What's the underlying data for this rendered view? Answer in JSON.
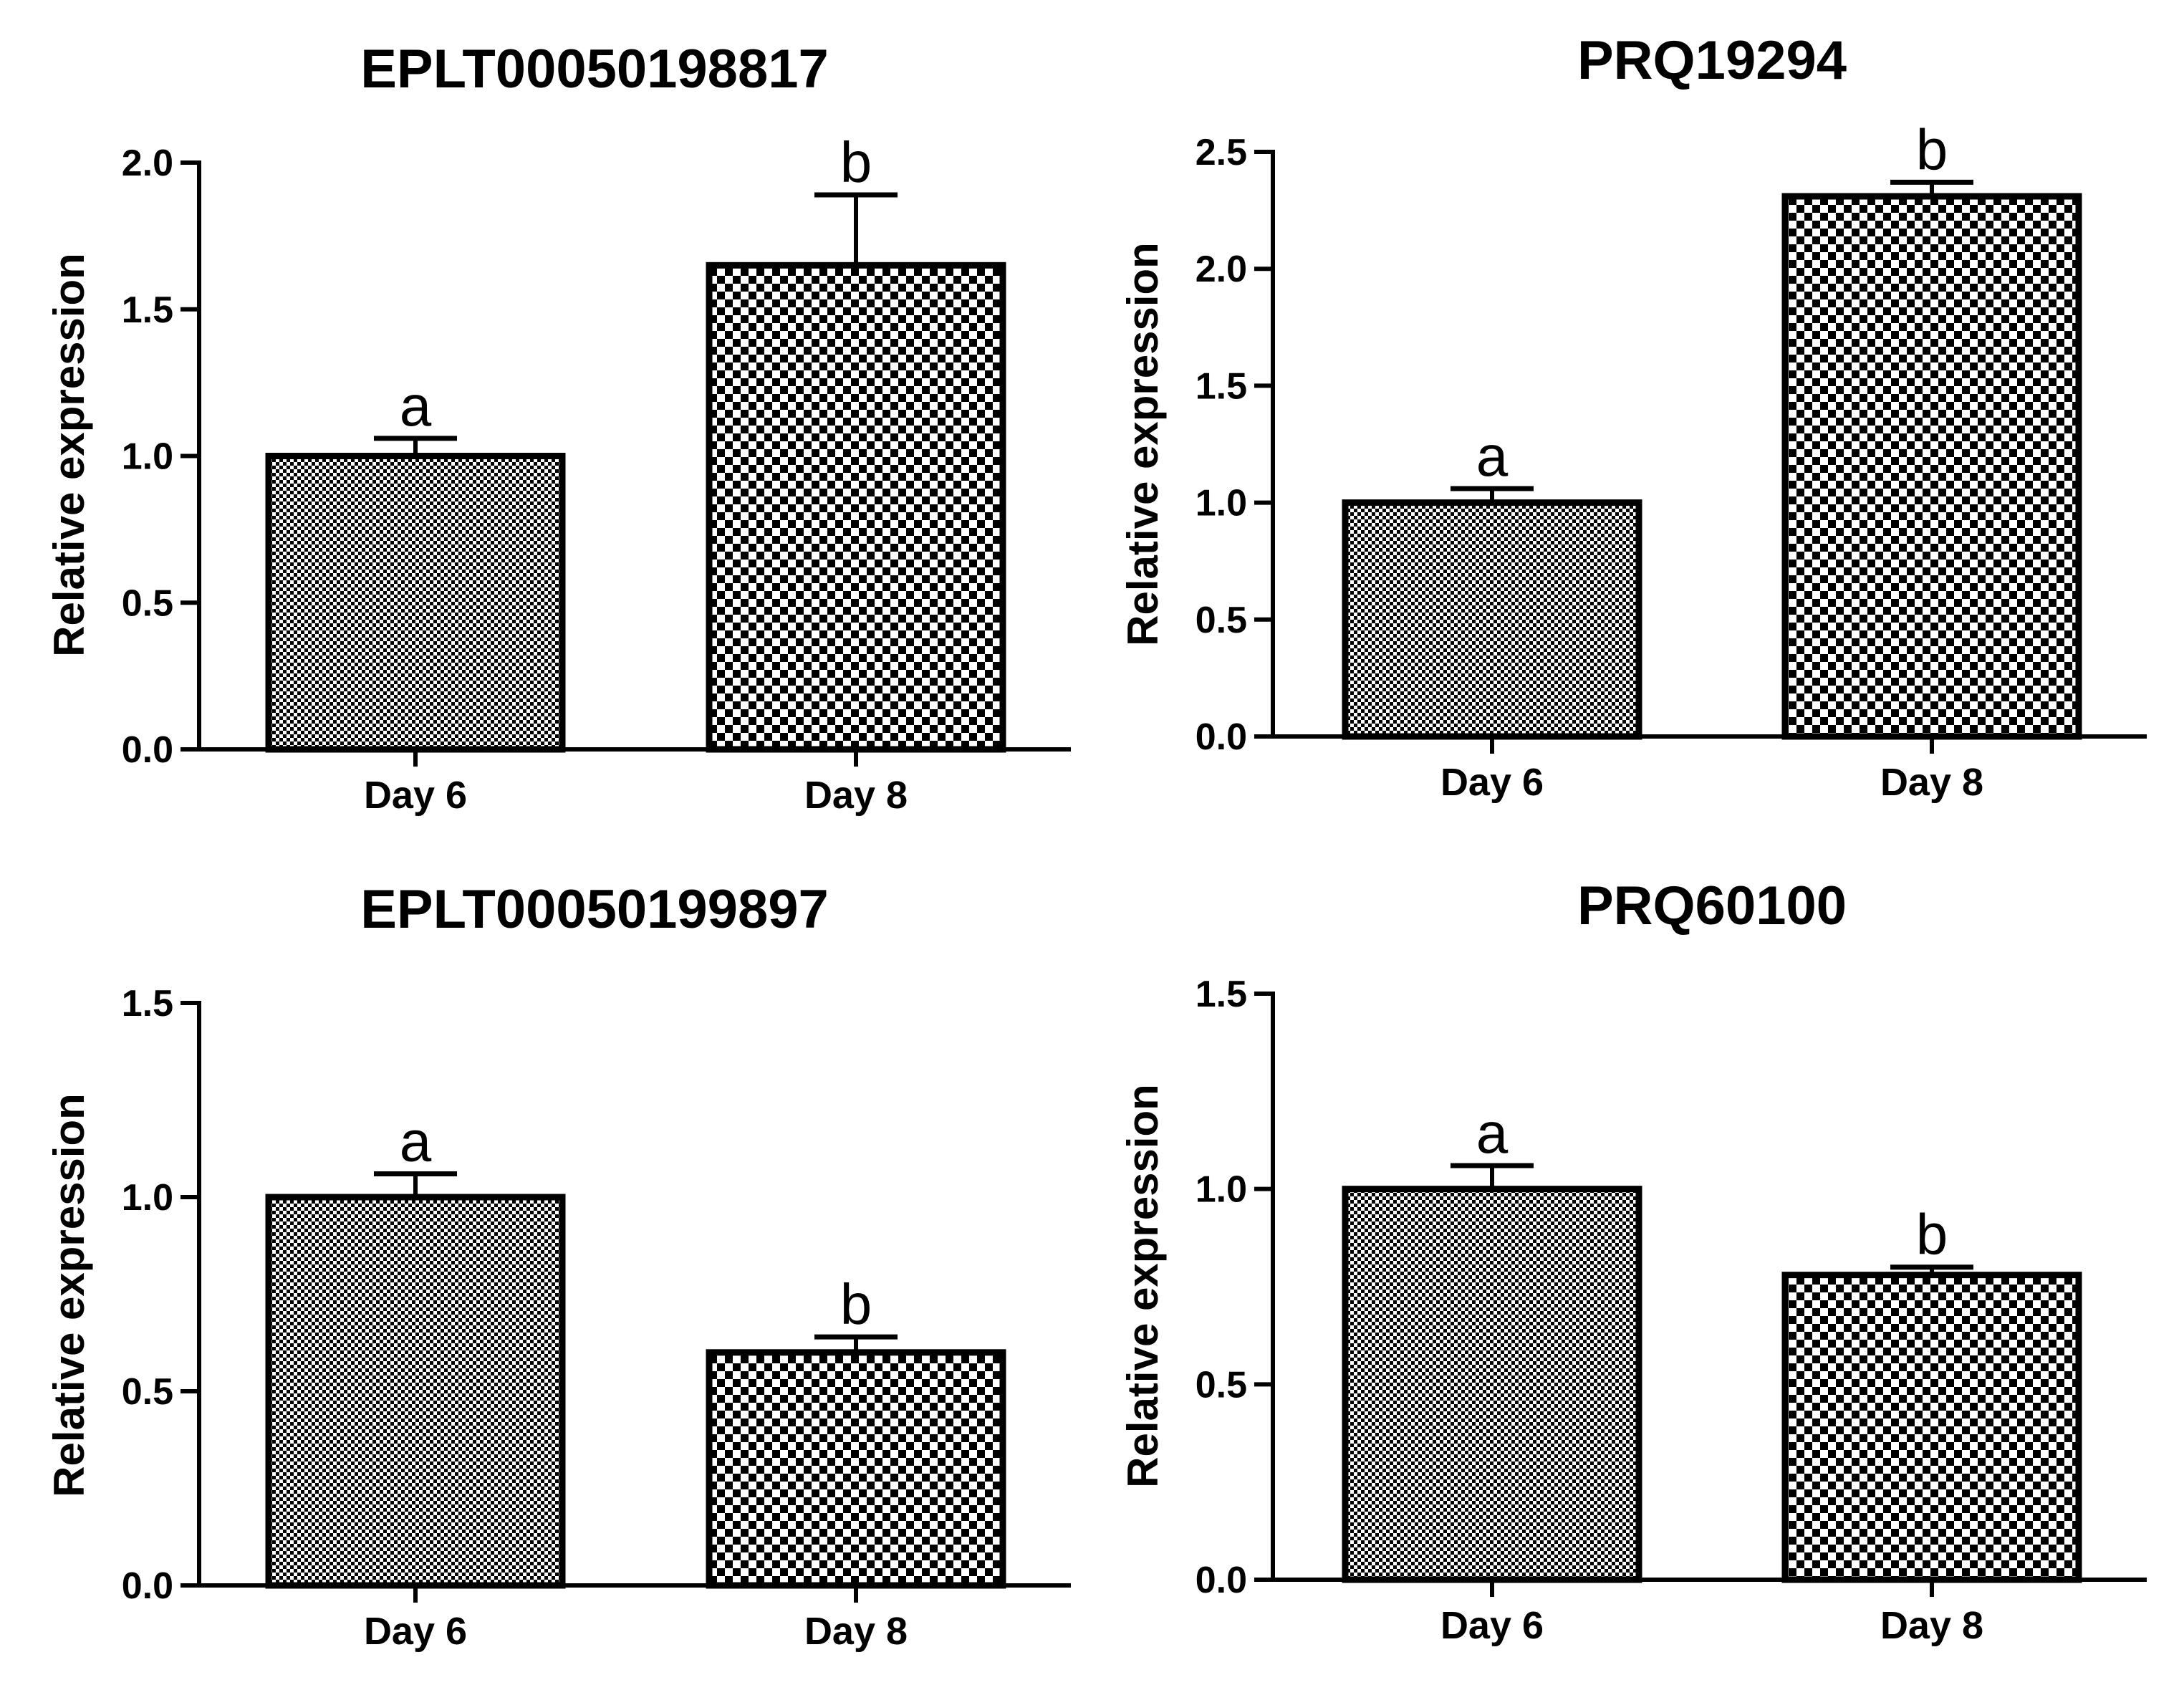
{
  "colors": {
    "ink": "#000000",
    "background": "#ffffff"
  },
  "chart_data": [
    {
      "type": "bar",
      "title": "EPLT00050198817",
      "xlabel": "",
      "ylabel": "Relative expression",
      "categories": [
        "Day 6",
        "Day 8"
      ],
      "values": [
        1.0,
        1.65
      ],
      "errors": [
        0.06,
        0.24
      ],
      "significance": [
        "a",
        "b"
      ],
      "ylim": [
        0,
        2.0
      ],
      "yticks": [
        0,
        0.5,
        1.0,
        1.5,
        2.0
      ],
      "ytick_labels": [
        "0.0",
        "0.5",
        "1.0",
        "1.5",
        "2.0"
      ],
      "patterns": [
        "fine-check",
        "coarse-check"
      ],
      "grid": false
    },
    {
      "type": "bar",
      "title": "PRQ19294",
      "xlabel": "",
      "ylabel": "Relative expression",
      "categories": [
        "Day 6",
        "Day 8"
      ],
      "values": [
        1.0,
        2.31
      ],
      "errors": [
        0.06,
        0.06
      ],
      "significance": [
        "a",
        "b"
      ],
      "ylim": [
        0,
        2.5
      ],
      "yticks": [
        0,
        0.5,
        1.0,
        1.5,
        2.0,
        2.5
      ],
      "ytick_labels": [
        "0.0",
        "0.5",
        "1.0",
        "1.5",
        "2.0",
        "2.5"
      ],
      "patterns": [
        "fine-check",
        "coarse-check"
      ],
      "grid": false
    },
    {
      "type": "bar",
      "title": "EPLT00050199897",
      "xlabel": "",
      "ylabel": "Relative expression",
      "categories": [
        "Day 6",
        "Day 8"
      ],
      "values": [
        1.0,
        0.6
      ],
      "errors": [
        0.06,
        0.04
      ],
      "significance": [
        "a",
        "b"
      ],
      "ylim": [
        0,
        1.5
      ],
      "yticks": [
        0,
        0.5,
        1.0,
        1.5
      ],
      "ytick_labels": [
        "0.0",
        "0.5",
        "1.0",
        "1.5"
      ],
      "patterns": [
        "fine-check",
        "coarse-check"
      ],
      "grid": false
    },
    {
      "type": "bar",
      "title": "PRQ60100",
      "xlabel": "",
      "ylabel": "Relative expression",
      "categories": [
        "Day 6",
        "Day 8"
      ],
      "values": [
        1.0,
        0.78
      ],
      "errors": [
        0.06,
        0.02
      ],
      "significance": [
        "a",
        "b"
      ],
      "ylim": [
        0,
        1.5
      ],
      "yticks": [
        0,
        0.5,
        1.0,
        1.5
      ],
      "ytick_labels": [
        "0.0",
        "0.5",
        "1.0",
        "1.5"
      ],
      "patterns": [
        "fine-check",
        "coarse-check"
      ],
      "grid": false
    }
  ]
}
